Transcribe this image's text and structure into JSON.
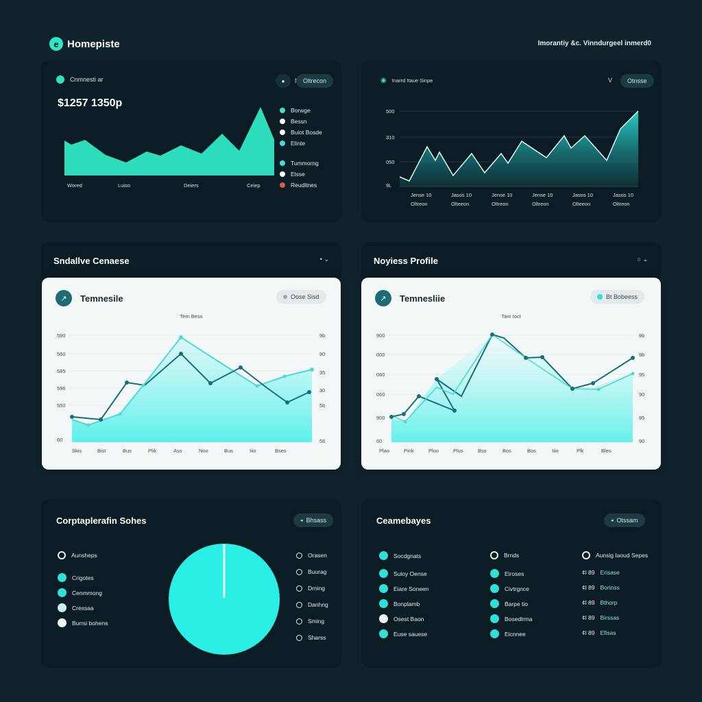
{
  "app": {
    "title": "Homepiste",
    "top_right": "Imorantiy &c. Vinndurgeel inmerd0"
  },
  "panel1": {
    "title": "Cnmnesti ar",
    "value": "$1257 1350p",
    "control_glyph": "N",
    "pill": "Oltrecon",
    "legend": [
      {
        "label": "Borwge",
        "color": "#3fe0d0"
      },
      {
        "label": "Bessn",
        "color": "#ffffff"
      },
      {
        "label": "Buiot Bosde",
        "color": "#ffffff"
      },
      {
        "label": "Elinte",
        "color": "#3fe0d0"
      },
      {
        "label": "Tummorng",
        "color": "#3fe0d0"
      },
      {
        "label": "Elsse",
        "color": "#ffffff"
      },
      {
        "label": "Reuditnes",
        "color": "#e0564a"
      }
    ],
    "x_labels": [
      "Wored",
      "Luiso",
      "Deiers",
      "Ceiep"
    ]
  },
  "panel2": {
    "title": "Inarrd Itaue Sinpe",
    "control_glyph": "V",
    "pill": "Otnsse",
    "y_labels": [
      "500",
      "310",
      "050",
      "9L"
    ],
    "x_labels_top": [
      "Jense 10",
      "Jasos 10",
      "Jense 10",
      "Jense 10",
      "Jasos 10",
      "Jasos 10"
    ],
    "x_labels_bottom": [
      "Oltreon",
      "Olteeon",
      "Oltreon",
      "Oltreon",
      "Olteeon",
      "Oltreon"
    ]
  },
  "section3": {
    "title": "Sndallve Cenaese",
    "controls": "• ⌄"
  },
  "section4": {
    "title": "Noyiess Profile",
    "controls": "○ ⌄"
  },
  "panel3": {
    "title": "Temnesile",
    "pill": "Oose Sisd",
    "chart_title": "Tem Bess",
    "y_left": [
      "590",
      "560",
      "585",
      "596",
      "550",
      "60"
    ],
    "y_right": [
      "9b",
      "90",
      "35",
      "30",
      "5b",
      "56"
    ],
    "x_labels": [
      "Skis",
      "Bist",
      "Bus",
      "Plik",
      "Ass",
      "Noo",
      "Bus",
      "Iiio",
      "Bses"
    ]
  },
  "panel4": {
    "title": "Temnesliie",
    "pill": "Bt Bobeess",
    "chart_title": "Tam Ioct",
    "y_left": [
      "900",
      "000",
      "060",
      "060",
      "900",
      "60"
    ],
    "y_right": [
      "9b",
      "9b",
      "95",
      "90",
      "95",
      "90"
    ],
    "x_labels": [
      "Plao",
      "Pink",
      "Ploo",
      "Plus",
      "Bss",
      "Bos",
      "Bos",
      "Iiio",
      "Plk",
      "Bles"
    ]
  },
  "panel5": {
    "title": "Corptaplerafin Sohes",
    "pill": "Bhsass",
    "legend": [
      {
        "label": "Aunsheps",
        "kind": "ring",
        "color": "#e8f0f0"
      },
      {
        "label": "Crigotes",
        "kind": "dot",
        "color": "#2fe0d8"
      },
      {
        "label": "Cenmmong",
        "kind": "dot",
        "color": "#2fe0d8"
      },
      {
        "label": "Cressaa",
        "kind": "dot",
        "color": "#c8efef"
      },
      {
        "label": "Burrsi bohens",
        "kind": "dot",
        "color": "#f2f4f4"
      }
    ],
    "right_list": [
      "Orasen",
      "Buurag",
      "Drning",
      "Danhng",
      "Sming",
      "Sharss"
    ],
    "pie": [
      {
        "label": "",
        "value": 100,
        "color": "#29efe4"
      }
    ]
  },
  "panel6": {
    "title": "Ceamebayes",
    "pill": "Otssam",
    "headers": [
      "Socdgnats",
      "Brnds",
      "Aunsig Iaoud Sepes"
    ],
    "col1": [
      "Suloy Oense",
      "Eiare Soneen",
      "Bonplamb",
      "Osest Baon",
      "Euse sauese"
    ],
    "col2": [
      "Eiroses",
      "Civtrgnce",
      "Barpe tio",
      "Bosedlrma",
      "Eicnnee"
    ],
    "col3_nums": [
      "¢l 89",
      "¢l 89",
      "¢l 89",
      "¢l 89",
      "¢l 89"
    ],
    "col3_labels": [
      "Erisase",
      "Borinss",
      "Bthorp",
      "Birssas",
      "Efisas"
    ]
  }
}
